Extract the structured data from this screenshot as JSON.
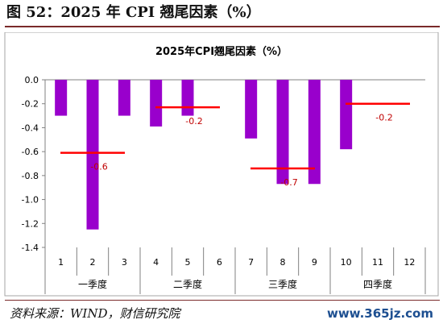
{
  "figure_title": "图 52：2025 年 CPI 翘尾因素（%）",
  "source": "资料来源：WIND，财信研究院",
  "watermark": "www.365jz.com",
  "colors": {
    "bar": "#9900cc",
    "quarter_line": "#ff0000",
    "label": "#c00000",
    "axis": "#808080"
  },
  "chart_data": {
    "type": "bar",
    "title": "2025年CPI翘尾因素（%）",
    "xlabel": "",
    "ylabel": "",
    "ylim": [
      -1.4,
      0.0
    ],
    "yticks": [
      "0.0",
      "-0.2",
      "-0.4",
      "-0.6",
      "-0.8",
      "-1.0",
      "-1.2",
      "-1.4"
    ],
    "categories": [
      "1",
      "2",
      "3",
      "4",
      "5",
      "6",
      "7",
      "8",
      "9",
      "10",
      "11",
      "12"
    ],
    "values": [
      -0.3,
      -1.25,
      -0.3,
      -0.39,
      -0.3,
      0,
      -0.49,
      -0.87,
      -0.87,
      -0.58,
      0,
      0
    ],
    "quarters": [
      {
        "label": "一季度",
        "months": [
          "1",
          "2",
          "3"
        ],
        "average": -0.61,
        "average_label": "-0.6"
      },
      {
        "label": "二季度",
        "months": [
          "4",
          "5",
          "6"
        ],
        "average": -0.23,
        "average_label": "-0.2"
      },
      {
        "label": "三季度",
        "months": [
          "7",
          "8",
          "9"
        ],
        "average": -0.74,
        "average_label": "-0.7"
      },
      {
        "label": "四季度",
        "months": [
          "10",
          "11",
          "12"
        ],
        "average": -0.2,
        "average_label": "-0.2"
      }
    ],
    "grid": false,
    "legend": "none"
  }
}
